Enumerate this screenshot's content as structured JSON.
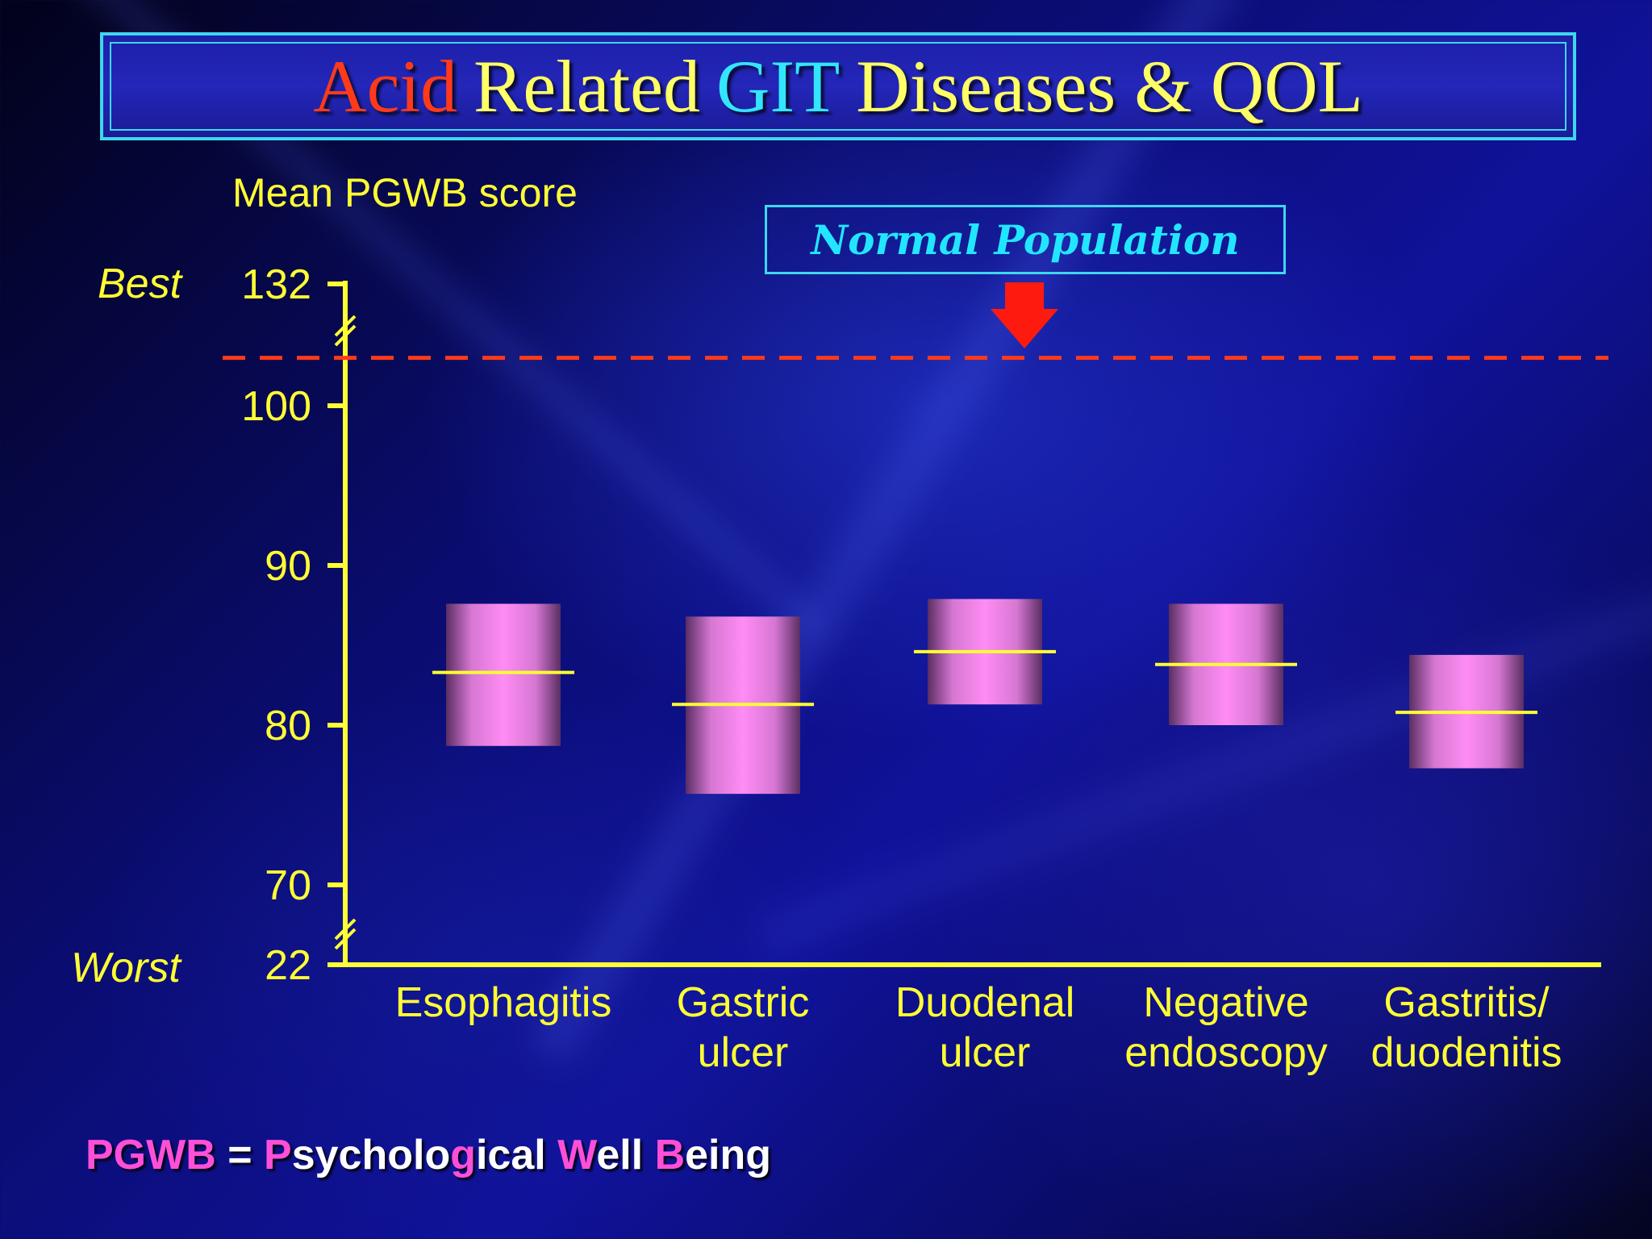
{
  "title": {
    "parts": [
      {
        "text": "Acid",
        "color": "#ff3a1a"
      },
      {
        "text": "Related",
        "color": "#ffff66"
      },
      {
        "text": "GIT",
        "color": "#33e6ff"
      },
      {
        "text": "Diseases & QOL",
        "color": "#ffff66"
      }
    ]
  },
  "side_labels": {
    "best": "Best",
    "worst": "Worst"
  },
  "normal_population_label": "Normal Population",
  "footnote": {
    "parts": [
      {
        "text": "PGWB",
        "color": "pink"
      },
      {
        "text": " = ",
        "color": "white"
      },
      {
        "text": "P",
        "color": "pink"
      },
      {
        "text": "sycholo",
        "color": "white"
      },
      {
        "text": "g",
        "color": "pink"
      },
      {
        "text": "ical ",
        "color": "white"
      },
      {
        "text": "W",
        "color": "pink"
      },
      {
        "text": "ell ",
        "color": "white"
      },
      {
        "text": "B",
        "color": "pink"
      },
      {
        "text": "eing",
        "color": "white"
      }
    ]
  },
  "chart_data": {
    "type": "box",
    "ylabel": "Mean PGWB score",
    "yticks": [
      "132",
      "100",
      "90",
      "80",
      "70",
      "22"
    ],
    "ylim": [
      65,
      105
    ],
    "axis_break": true,
    "categories": [
      [
        "Esophagitis"
      ],
      [
        "Gastric",
        "ulcer"
      ],
      [
        "Duodenal",
        "ulcer"
      ],
      [
        "Negative",
        "endoscopy"
      ],
      [
        "Gastritis/",
        "duodenitis"
      ]
    ],
    "series": [
      {
        "mean": [
          83.3,
          81.3,
          84.6,
          83.8,
          80.8
        ],
        "low": [
          78.7,
          75.7,
          81.3,
          80.0,
          77.3
        ],
        "high": [
          87.6,
          86.8,
          87.9,
          87.6,
          84.4
        ]
      }
    ],
    "reference_line": {
      "label": "Normal Population",
      "value": 103.0
    },
    "colors": {
      "axis": "#ffff33",
      "box": "#ff88f0",
      "mean_line": "#ffff33",
      "reference": "#ff3a1a"
    }
  }
}
